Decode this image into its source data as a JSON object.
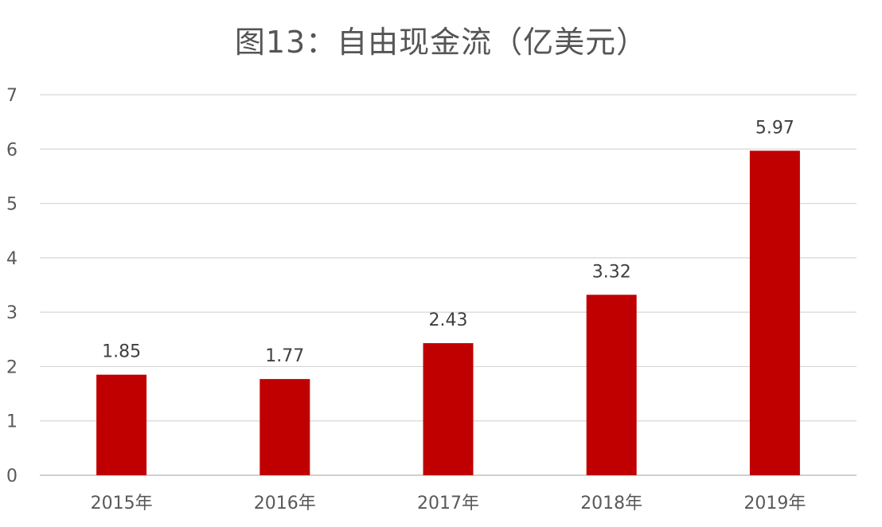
{
  "chart_data": {
    "type": "bar",
    "title": "图13：自由现金流（亿美元）",
    "categories": [
      "2015年",
      "2016年",
      "2017年",
      "2018年",
      "2019年"
    ],
    "values": [
      1.85,
      1.77,
      2.43,
      3.32,
      5.97
    ],
    "data_labels": [
      "1.85",
      "1.77",
      "2.43",
      "3.32",
      "5.97"
    ],
    "yticks": [
      "0",
      "1",
      "2",
      "3",
      "4",
      "5",
      "6",
      "7"
    ],
    "ylim": [
      0,
      7
    ],
    "xlabel": "",
    "ylabel": "",
    "grid": true,
    "legend": "none",
    "bar_color": "#c00000"
  }
}
